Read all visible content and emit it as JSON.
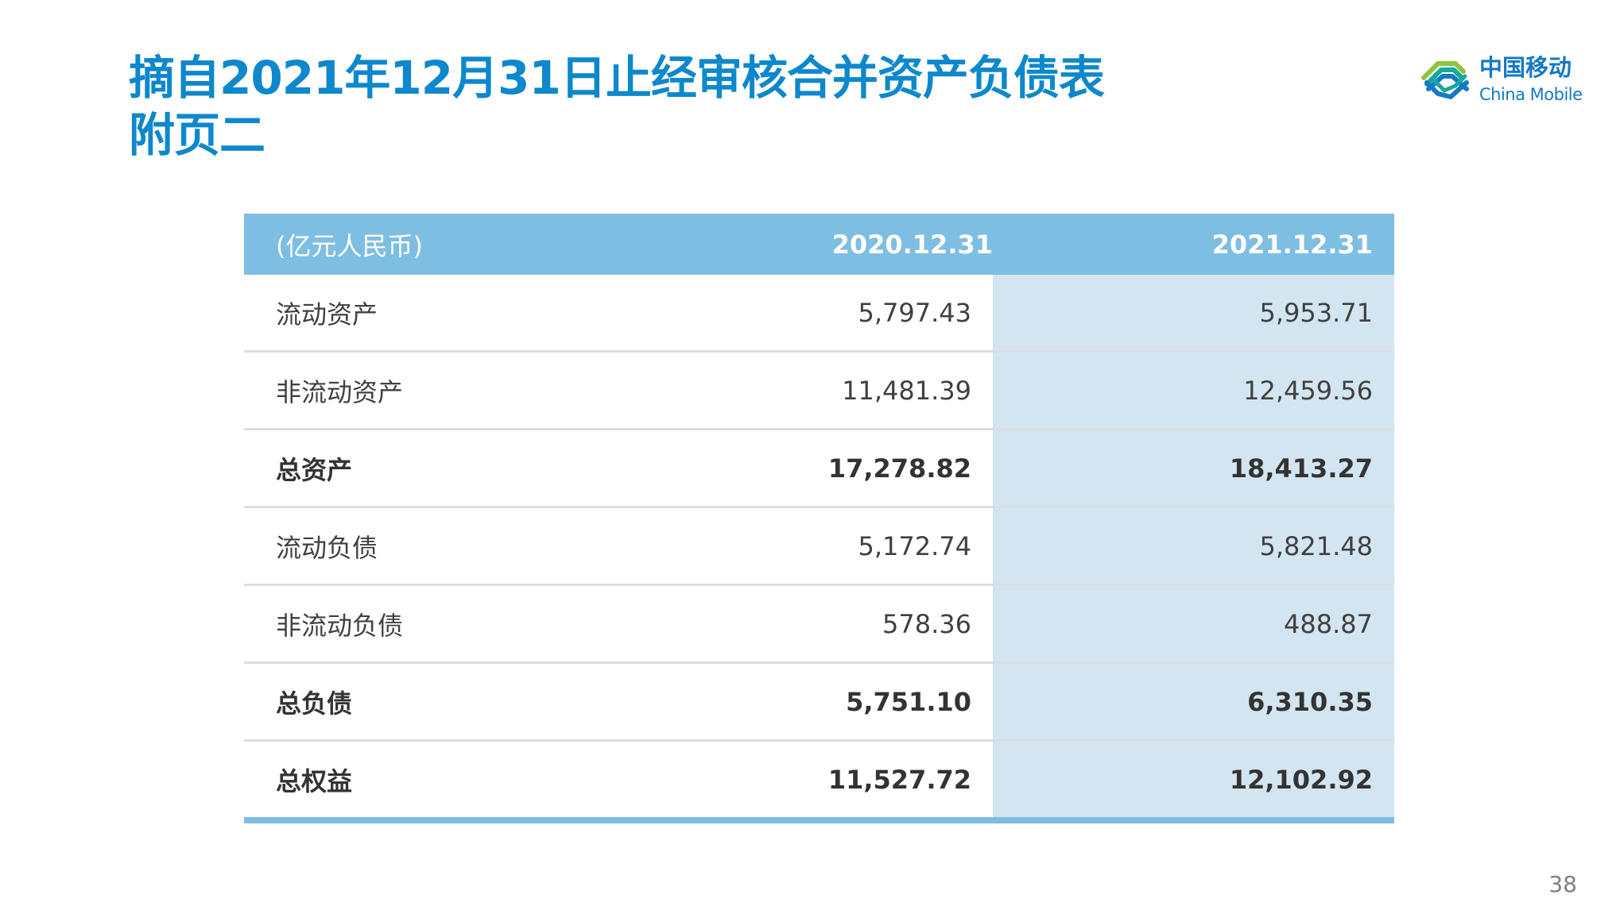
{
  "title": {
    "line1": "摘自2021年12月31日止经审核合并资产负债表",
    "line2": "附页二"
  },
  "logo": {
    "cn": "中国移动",
    "en": "China Mobile",
    "colors": {
      "blue": "#1579c4",
      "teal": "#16a8a0",
      "green": "#8cc63f"
    }
  },
  "table": {
    "header": {
      "unit": "(亿元人民币)",
      "col1": "2020.12.31",
      "col2": "2021.12.31"
    },
    "rows": [
      {
        "label": "流动资产",
        "v2020": "5,797.43",
        "v2021": "5,953.71",
        "bold": false
      },
      {
        "label": "非流动资产",
        "v2020": "11,481.39",
        "v2021": "12,459.56",
        "bold": false
      },
      {
        "label": "总资产",
        "v2020": "17,278.82",
        "v2021": "18,413.27",
        "bold": true
      },
      {
        "label": "流动负债",
        "v2020": "5,172.74",
        "v2021": "5,821.48",
        "bold": false
      },
      {
        "label": "非流动负债",
        "v2020": "578.36",
        "v2021": "488.87",
        "bold": false
      },
      {
        "label": "总负债",
        "v2020": "5,751.10",
        "v2021": "6,310.35",
        "bold": true
      },
      {
        "label": "总权益",
        "v2020": "11,527.72",
        "v2021": "12,102.92",
        "bold": true
      }
    ]
  },
  "page_number": "38",
  "colors": {
    "title": "#0d88cc",
    "header_bg": "#7fbee3",
    "highlight_col_bg": "#d3e5f1"
  }
}
